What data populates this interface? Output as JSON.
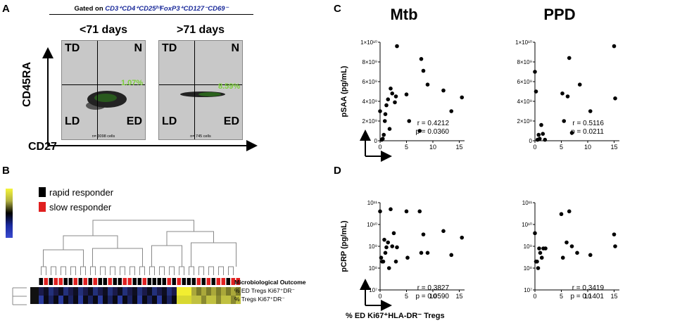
{
  "panels": {
    "a": "A",
    "b": "B",
    "c": "C",
    "d": "D"
  },
  "panel_a": {
    "gate_prefix": "Gated on ",
    "gate_markers": "CD3⁺CD4⁺CD25ʰⁱFoxP3⁺CD127⁻CD69⁻",
    "plots": [
      {
        "title": "<71 days",
        "percent": "1.07%",
        "cells": "n= 3098 cells"
      },
      {
        "title": ">71 days",
        "percent": "8.59%",
        "cells": "n= 745 cells"
      }
    ],
    "quadrants": {
      "tl": "TD",
      "tr": "N",
      "bl": "LD",
      "br": "ED"
    },
    "y_axis": "CD45RA",
    "x_axis": "CD27"
  },
  "panel_b": {
    "legend": [
      {
        "label": "rapid responder",
        "color": "#000000"
      },
      {
        "label": "slow responder",
        "color": "#e02020"
      }
    ],
    "row_labels": {
      "outcome": "Microbiological Outcome",
      "row1": "% ED Tregs Ki67⁺DR⁻",
      "row2": "% Tregs Ki67⁺DR⁻"
    },
    "outcome_colors": [
      "#000000",
      "#e02020",
      "#000000",
      "#e02020",
      "#e02020",
      "#000000",
      "#000000",
      "#e02020",
      "#000000",
      "#e02020",
      "#000000",
      "#e02020",
      "#000000",
      "#000000",
      "#e02020",
      "#000000",
      "#000000",
      "#e02020",
      "#e02020",
      "#000000",
      "#000000",
      "#e02020",
      "#000000",
      "#000000",
      "#000000",
      "#000000",
      "#e02020",
      "#000000",
      "#e02020",
      "#000000",
      "#000000",
      "#000000",
      "#e02020",
      "#000000",
      "#e02020",
      "#000000",
      "#e02020",
      "#e02020",
      "#000000",
      "#e02020",
      "#e02020"
    ]
  },
  "panel_c": {
    "col_titles": [
      "Mtb",
      "PPD"
    ],
    "y_label": "pSAA (pg/mL)",
    "yticks": [
      "0",
      "2×10⁹",
      "4×10⁹",
      "6×10⁹",
      "8×10⁹",
      "1×10¹⁰"
    ]
  },
  "panel_d": {
    "y_label": "pCRP (pg/mL)",
    "x_label": "% ED Ki67⁺HLA-DR⁻ Tregs",
    "yticks": [
      "10⁷",
      "10⁸",
      "10⁹",
      "10¹⁰",
      "10¹¹"
    ]
  },
  "xticks": [
    "0",
    "5",
    "10",
    "15"
  ],
  "chart_data": [
    {
      "type": "scatter",
      "title": "Mtb",
      "ylabel": "pSAA (pg/mL)",
      "xlim": [
        0,
        16
      ],
      "ylim": [
        0,
        10000000000
      ],
      "r": "r = 0.4212",
      "p": "p = 0.0360",
      "x": [
        0,
        0.3,
        0.5,
        0.7,
        0.9,
        1.0,
        1.2,
        1.5,
        1.8,
        2.0,
        2.3,
        2.8,
        3.0,
        3.2,
        5.0,
        5.5,
        7.5,
        7.8,
        8.2,
        9.0,
        12.0,
        13.5,
        15.5
      ],
      "y": [
        3000000000,
        100000000,
        200000000,
        600000000,
        2000000000,
        2700000000,
        3600000000,
        4200000000,
        1200000000,
        5300000000,
        4800000000,
        3900000000,
        4500000000,
        9600000000,
        4700000000,
        2000000000,
        1000000000,
        8300000000,
        7100000000,
        5700000000,
        5100000000,
        3000000000,
        4400000000
      ]
    },
    {
      "type": "scatter",
      "title": "PPD",
      "ylabel": "pSAA (pg/mL)",
      "xlim": [
        0,
        16
      ],
      "ylim": [
        0,
        10000000000
      ],
      "r": "r = 0.5116",
      "p": "p = 0.0211",
      "x": [
        0,
        0.2,
        0.5,
        0.7,
        0.9,
        1.2,
        1.5,
        1.9,
        5.2,
        5.5,
        6.2,
        6.5,
        7.0,
        8.5,
        10.5,
        15.0,
        15.2
      ],
      "y": [
        7000000000,
        5000000000,
        100000000,
        600000000,
        200000000,
        1600000000,
        700000000,
        100000000,
        4800000000,
        2000000000,
        4500000000,
        8400000000,
        800000000,
        5700000000,
        3000000000,
        9600000000,
        4300000000
      ]
    },
    {
      "type": "scatter",
      "title": "Mtb",
      "ylabel": "pCRP (pg/mL)",
      "yscale": "log",
      "xlim": [
        0,
        16
      ],
      "ylim": [
        10000000,
        100000000000
      ],
      "r": "r = 0.3827",
      "p": "p = 0.0590",
      "x": [
        0,
        0.2,
        0.4,
        0.6,
        0.8,
        1.0,
        1.2,
        1.5,
        1.7,
        2.0,
        2.3,
        2.6,
        3.0,
        3.2,
        5.0,
        5.2,
        7.5,
        7.8,
        8.2,
        9.0,
        12.0,
        13.5,
        15.5
      ],
      "y": [
        40000000000,
        300000000,
        200000000,
        200000000,
        2000000000,
        500000000,
        900000000,
        1500000000,
        100000000,
        50000000000,
        1000000000,
        4000000000,
        200000000,
        900000000,
        40000000000,
        300000000,
        40000000000,
        500000000,
        3500000000,
        500000000,
        5000000000,
        400000000,
        2500000000
      ]
    },
    {
      "type": "scatter",
      "title": "PPD",
      "ylabel": "pCRP (pg/mL)",
      "yscale": "log",
      "xlim": [
        0,
        16
      ],
      "ylim": [
        10000000,
        100000000000
      ],
      "r": "r = 0.3419",
      "p": "p = 0.1401",
      "x": [
        0,
        0.2,
        0.4,
        0.6,
        0.8,
        1.0,
        1.3,
        1.6,
        2.0,
        5.0,
        5.3,
        6.0,
        6.5,
        7.0,
        8.0,
        10.5,
        15.0,
        15.2
      ],
      "y": [
        4000000000,
        200000000,
        200000000,
        100000000,
        800000000,
        500000000,
        300000000,
        800000000,
        800000000,
        30000000000,
        300000000,
        1500000000,
        40000000000,
        1000000000,
        500000000,
        400000000,
        3500000000,
        1000000000
      ]
    }
  ]
}
